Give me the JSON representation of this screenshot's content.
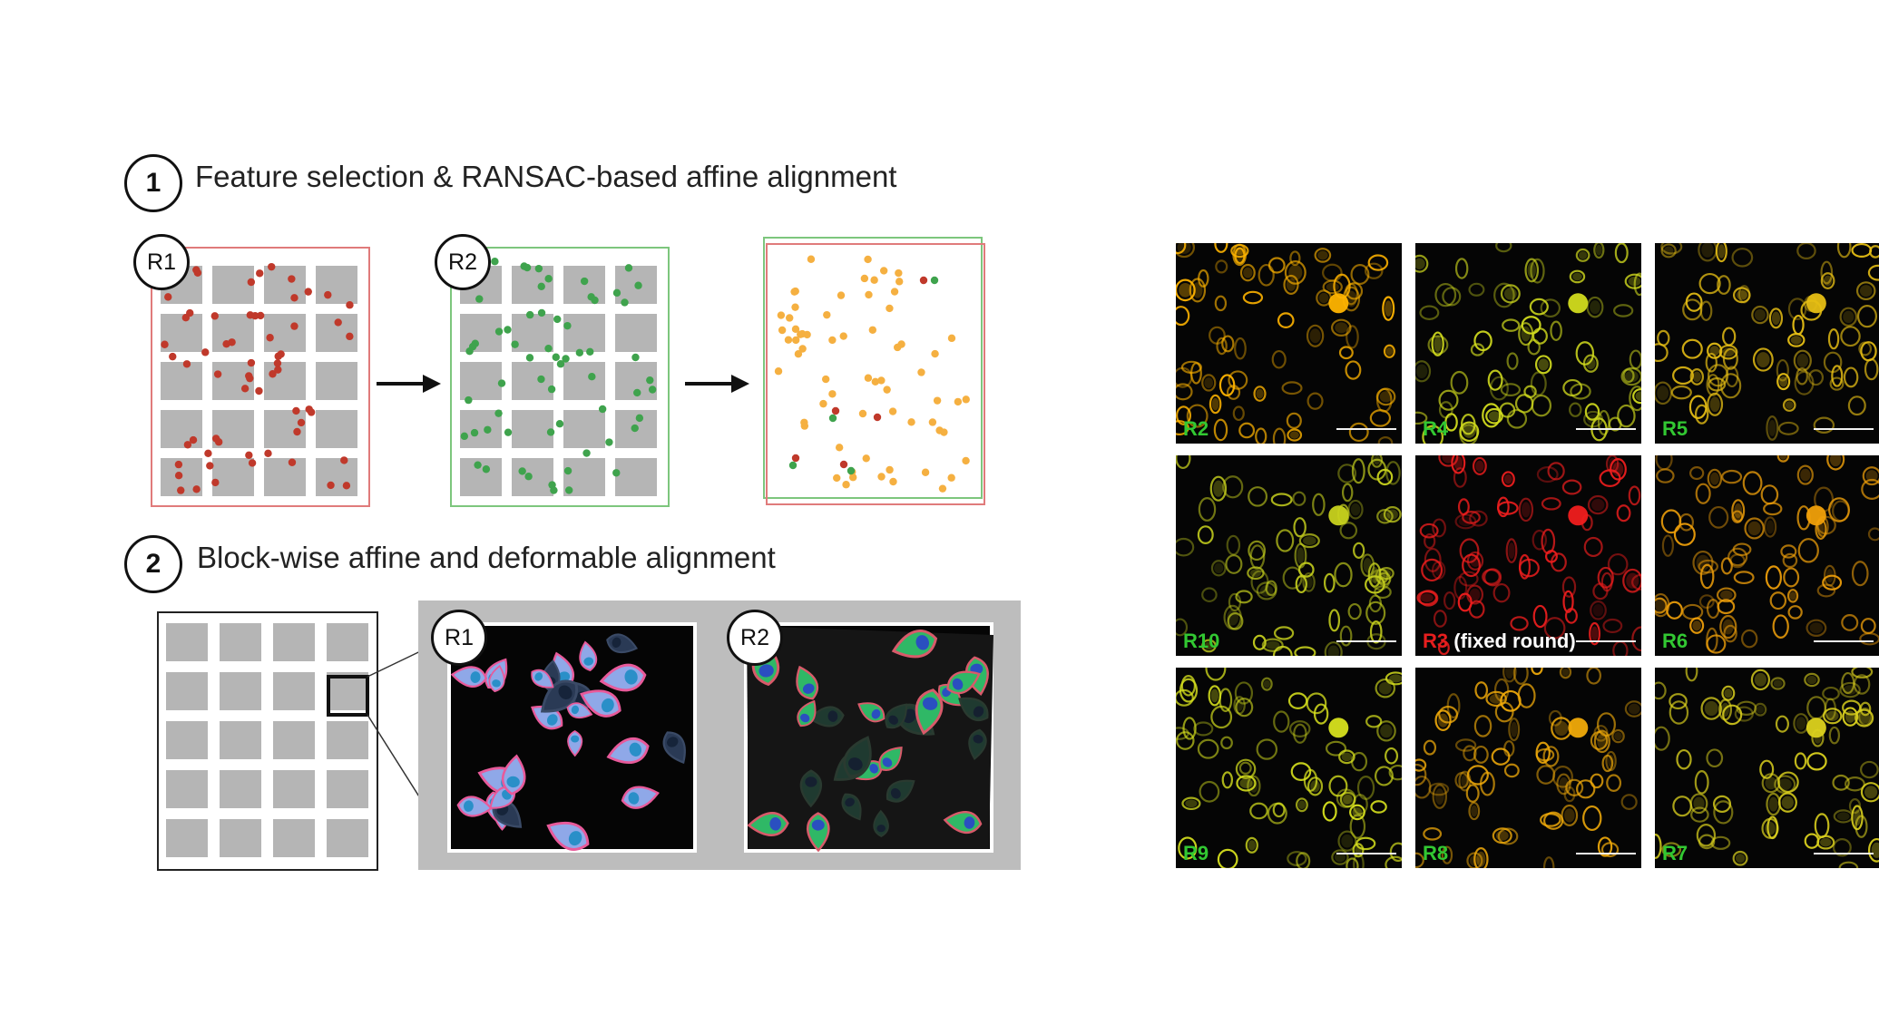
{
  "step1": {
    "number": "1",
    "title": "Feature selection &  RANSAC-based affine alignment"
  },
  "step2": {
    "number": "2",
    "title": "Block-wise affine and deformable alignment"
  },
  "rounds": {
    "r1": "R1",
    "r2": "R2"
  },
  "grid_panels": [
    {
      "label_main": "R2",
      "label_extra": "",
      "label_color": "#32c832",
      "tint": "#ffb400"
    },
    {
      "label_main": "R4",
      "label_extra": "",
      "label_color": "#32c832",
      "tint": "#d2dc1e"
    },
    {
      "label_main": "R5",
      "label_extra": "",
      "label_color": "#32c832",
      "tint": "#e6be14"
    },
    {
      "label_main": "R10",
      "label_extra": "",
      "label_color": "#32c832",
      "tint": "#c8d21e"
    },
    {
      "label_main": "R3",
      "label_extra": " (fixed round)",
      "label_color": "#e61e1e",
      "tint": "#f01e1e"
    },
    {
      "label_main": "R6",
      "label_extra": "",
      "label_color": "#32c832",
      "tint": "#f0a00a"
    },
    {
      "label_main": "R9",
      "label_extra": "",
      "label_color": "#32c832",
      "tint": "#d7e11e"
    },
    {
      "label_main": "R8",
      "label_extra": "",
      "label_color": "#32c832",
      "tint": "#f0aa0a"
    },
    {
      "label_main": "R7",
      "label_extra": "",
      "label_color": "#32c832",
      "tint": "#dcd21e"
    }
  ],
  "colors": {
    "r1_red": "#c0392b",
    "r2_green": "#3fa34d",
    "merged_orange": "#f5b041",
    "tile_gray": "#b5b5b5"
  }
}
